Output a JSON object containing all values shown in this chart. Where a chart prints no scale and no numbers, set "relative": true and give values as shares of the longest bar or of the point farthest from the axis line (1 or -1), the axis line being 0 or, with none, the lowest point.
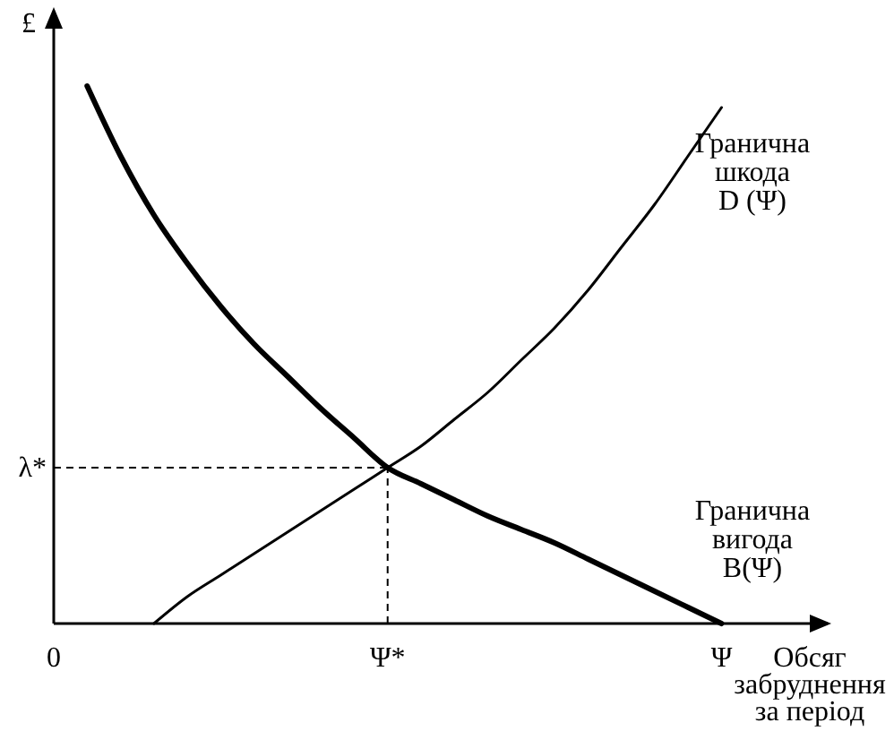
{
  "chart_data": {
    "type": "line",
    "relative": true,
    "ylabel": "£",
    "xlabel": "Обсяг забруднення за період",
    "categories": [
      "0",
      null,
      null,
      null,
      null,
      null,
      null,
      null,
      null,
      null,
      "Ψ*",
      null,
      null,
      null,
      null,
      null,
      null,
      null,
      null,
      null,
      "Ψ",
      null,
      null
    ],
    "series": [
      {
        "name": "Гранична шкода D (Ψ)",
        "color": "#000000",
        "values": [
          null,
          null,
          null,
          0,
          0.05,
          0.09,
          0.13,
          0.17,
          0.21,
          0.25,
          0.29,
          0.33,
          0.38,
          0.43,
          0.49,
          0.55,
          0.62,
          0.7,
          0.78,
          0.87,
          0.96,
          null,
          null
        ]
      },
      {
        "name": "Гранична вигода B(Ψ)",
        "color": "#000000",
        "values": [
          null,
          1,
          0.87,
          0.76,
          0.67,
          0.59,
          0.52,
          0.46,
          0.4,
          0.345,
          0.29,
          0.26,
          0.23,
          0.2,
          0.175,
          0.15,
          0.12,
          0.09,
          0.06,
          0.03,
          0,
          null,
          null
        ]
      }
    ],
    "ref_lines": [
      {
        "axis": "y",
        "value": 0.29,
        "label": "λ*",
        "line_style": "dashed"
      },
      {
        "axis": "x",
        "value": "Ψ*",
        "line_style": "dashed"
      }
    ],
    "legend": false
  }
}
